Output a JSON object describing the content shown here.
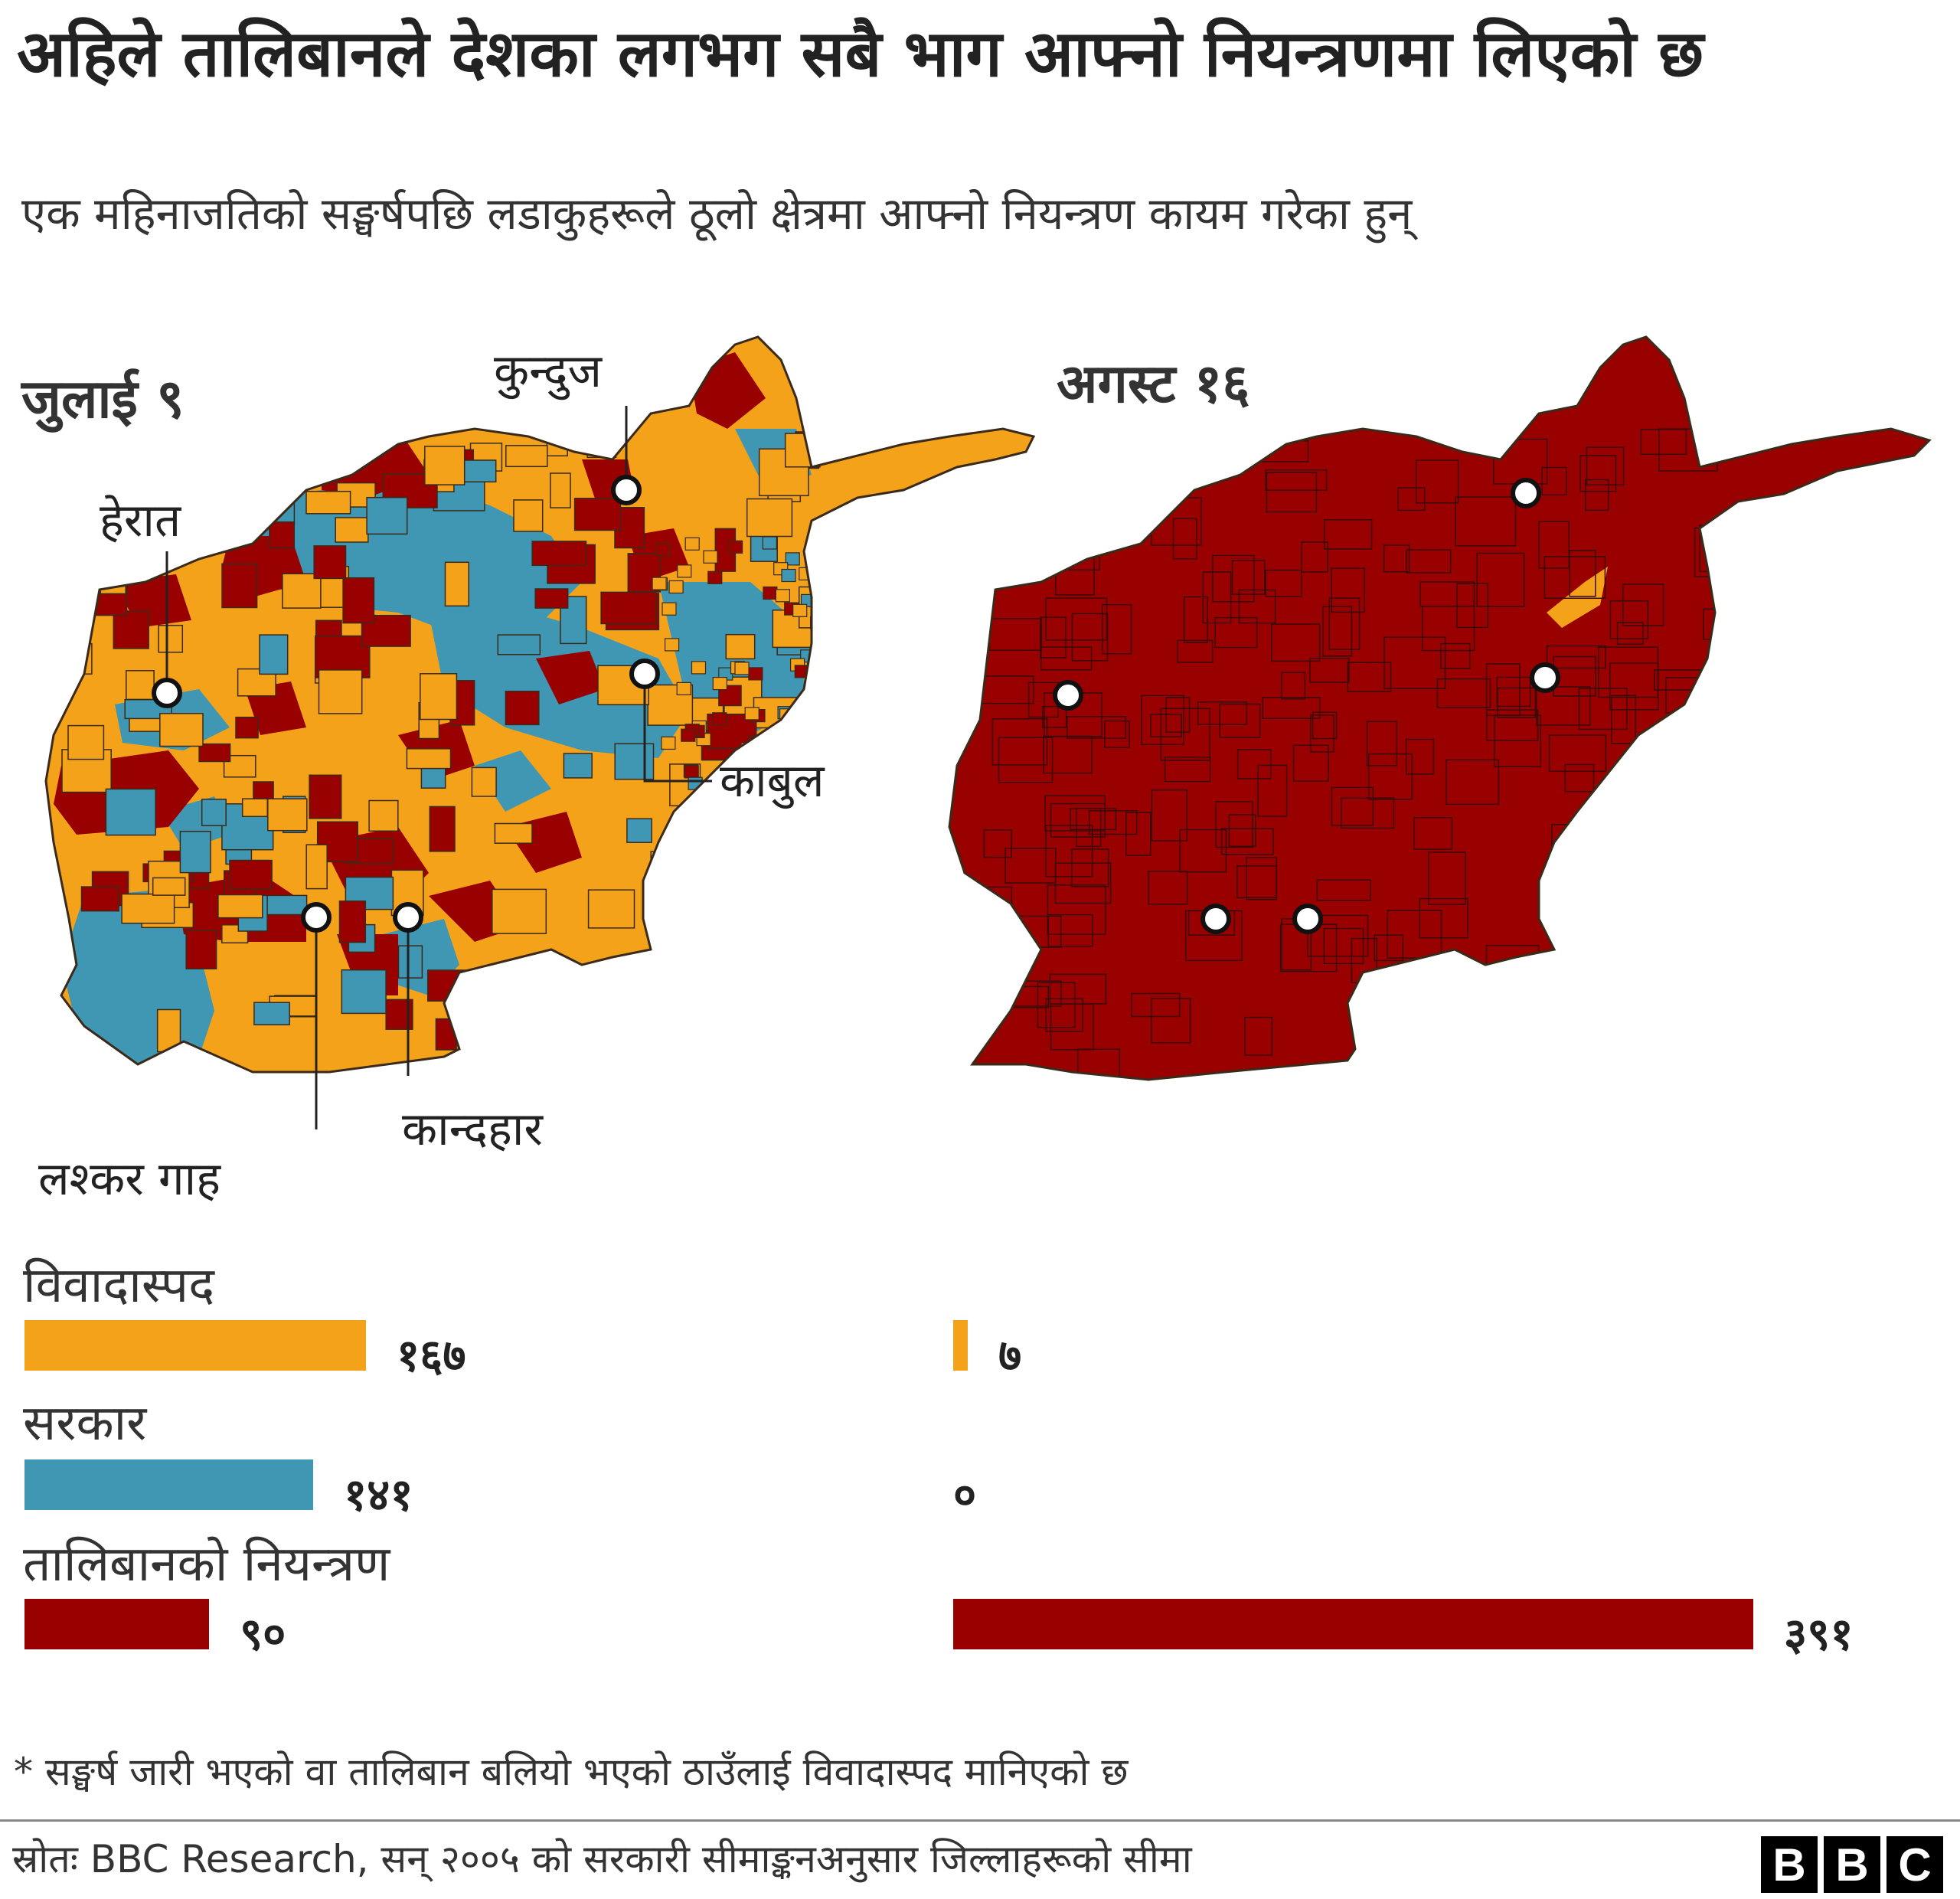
{
  "title": "अहिले तालिबानले देशका लगभग सबै भाग आफ्नो नियन्त्रणमा लिएको छ",
  "subtitle": "एक महिनाजतिको सङ्घर्षपछि लडाकुहरूले ठूलो क्षेत्रमा आफ्नो नियन्त्रण कायम गरेका हुन्",
  "maps": {
    "left_title": "जुलाई ९",
    "right_title": "अगस्ट १६",
    "cities": {
      "kunduz": "कुन्दुज",
      "herat": "हेरात",
      "kabul": "काबुल",
      "kandahar": "कान्दहार",
      "lashkar_gah": "लश्कर गाह"
    }
  },
  "colors": {
    "contested": "#f5a21b",
    "government": "#3f97b3",
    "taliban": "#990000",
    "border": "#3a2a1a"
  },
  "legend": {
    "contested": {
      "label": "विवादास्पद",
      "july": "१६७",
      "august": "७"
    },
    "government": {
      "label": "सरकार",
      "july": "१४१",
      "august": "०"
    },
    "taliban": {
      "label": "तालिबानको नियन्त्रण",
      "july": "९०",
      "august": "३९१"
    }
  },
  "chart_data": {
    "type": "bar",
    "categories": [
      "विवादास्पद",
      "सरकार",
      "तालिबानको नियन्त्रण"
    ],
    "series": [
      {
        "name": "जुलाई ९",
        "values": [
          167,
          141,
          90
        ]
      },
      {
        "name": "अगस्ट १६",
        "values": [
          7,
          0,
          391
        ]
      }
    ]
  },
  "footnote": "* सङ्घर्ष जारी भएको वा तालिबान बलियो भएको ठाउँलाई विवादास्पद मानिएको छ",
  "source": {
    "label": "स्रोतः",
    "text": "BBC Research, सन् २००५ को सरकारी सीमाङ्कनअनुसार जिल्लाहरूको सीमा"
  },
  "logo": {
    "letters": [
      "B",
      "B",
      "C"
    ]
  }
}
